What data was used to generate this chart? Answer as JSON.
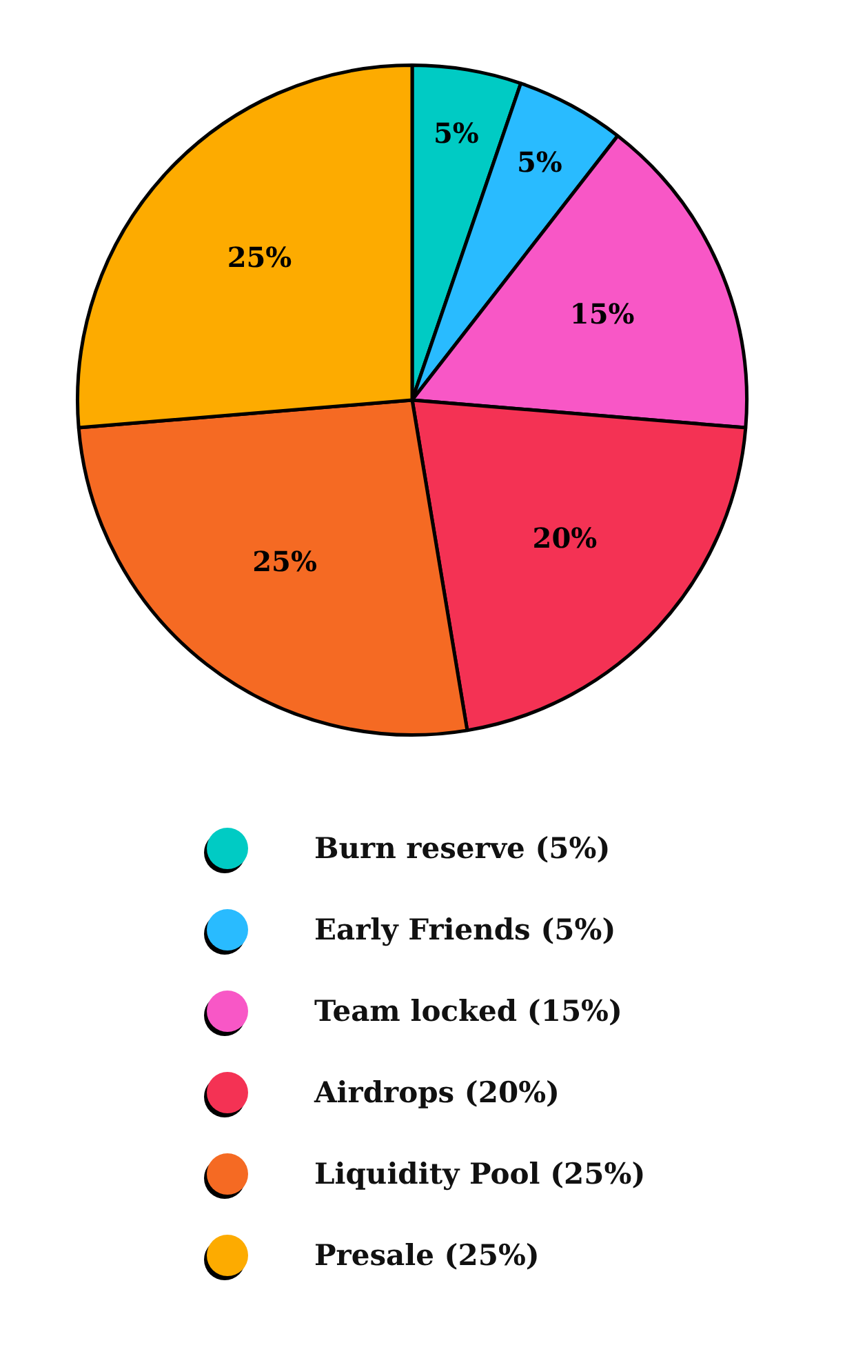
{
  "chart_data": {
    "type": "pie",
    "categories": [
      "Burn reserve (5%)",
      "Early Friends (5%)",
      "Team locked (15%)",
      "Airdrops (20%)",
      "Liquidity Pool (25%)",
      "Presale (25%)"
    ],
    "values": [
      5,
      5,
      15,
      20,
      25,
      25
    ],
    "colors": [
      "#00cbc4",
      "#29bbff",
      "#f857c6",
      "#f43254",
      "#f56a23",
      "#fdab00"
    ],
    "value_labels": [
      "5%",
      "5%",
      "15%",
      "20%",
      "25%",
      "25%"
    ],
    "legend": "bottom"
  }
}
